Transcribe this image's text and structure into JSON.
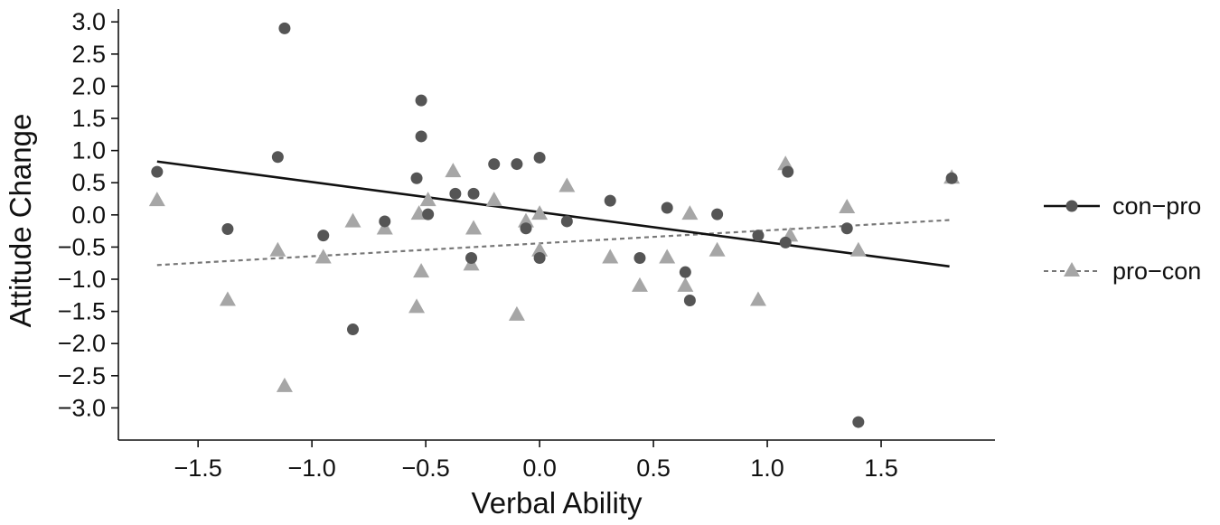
{
  "chart_data": {
    "type": "scatter",
    "xlabel": "Verbal Ability",
    "ylabel": "Attitude Change",
    "xlim": [
      -1.85,
      2.0
    ],
    "ylim": [
      -3.5,
      3.2
    ],
    "xticks": [
      -1.5,
      -1.0,
      -0.5,
      0.0,
      0.5,
      1.0,
      1.5
    ],
    "xtick_labels": [
      "−1.5",
      "−1.0",
      "−0.5",
      "0.0",
      "0.5",
      "1.0",
      "1.5"
    ],
    "yticks": [
      3.0,
      2.5,
      2.0,
      1.5,
      1.0,
      0.5,
      0.0,
      -0.5,
      -1.0,
      -1.5,
      -2.0,
      -2.5,
      -3.0
    ],
    "ytick_labels": [
      "3.0",
      "2.5",
      "2.0",
      "1.5",
      "1.0",
      "0.5",
      "0.0",
      "−0.5",
      "−1.0",
      "−1.5",
      "−2.0",
      "−2.5",
      "−3.0"
    ],
    "grid": false,
    "legend_position": "right",
    "series": [
      {
        "name": "con−pro",
        "marker": "circle",
        "line_style": "solid",
        "color": "#555555",
        "line_color": "#111111",
        "trend": [
          [
            -1.68,
            0.83
          ],
          [
            1.8,
            -0.8
          ]
        ],
        "points": [
          [
            -1.68,
            0.67
          ],
          [
            -1.37,
            -0.22
          ],
          [
            -1.15,
            0.9
          ],
          [
            -1.12,
            2.9
          ],
          [
            -0.95,
            -0.32
          ],
          [
            -0.82,
            -1.78
          ],
          [
            -0.68,
            -0.1
          ],
          [
            -0.54,
            0.57
          ],
          [
            -0.52,
            1.22
          ],
          [
            -0.52,
            1.78
          ],
          [
            -0.49,
            0.01
          ],
          [
            -0.37,
            0.33
          ],
          [
            -0.3,
            -0.67
          ],
          [
            -0.29,
            0.33
          ],
          [
            -0.2,
            0.79
          ],
          [
            -0.1,
            0.79
          ],
          [
            -0.06,
            -0.21
          ],
          [
            0.0,
            0.89
          ],
          [
            0.0,
            -0.67
          ],
          [
            0.12,
            -0.1
          ],
          [
            0.31,
            0.22
          ],
          [
            0.44,
            -0.67
          ],
          [
            0.56,
            0.11
          ],
          [
            0.64,
            -0.89
          ],
          [
            0.66,
            -1.33
          ],
          [
            0.78,
            0.01
          ],
          [
            0.96,
            -0.32
          ],
          [
            1.08,
            -0.43
          ],
          [
            1.09,
            0.67
          ],
          [
            1.35,
            -0.21
          ],
          [
            1.4,
            -3.22
          ],
          [
            1.81,
            0.57
          ]
        ]
      },
      {
        "name": "pro−con",
        "marker": "triangle",
        "line_style": "dashed",
        "color": "#a6a6a6",
        "line_color": "#777777",
        "trend": [
          [
            -1.68,
            -0.78
          ],
          [
            1.8,
            -0.08
          ]
        ],
        "points": [
          [
            -1.68,
            0.22
          ],
          [
            -1.37,
            -1.33
          ],
          [
            -1.15,
            -0.56
          ],
          [
            -1.12,
            -2.67
          ],
          [
            -0.95,
            -0.67
          ],
          [
            -0.82,
            -0.11
          ],
          [
            -0.68,
            -0.22
          ],
          [
            -0.54,
            -1.44
          ],
          [
            -0.53,
            0.01
          ],
          [
            -0.52,
            -0.89
          ],
          [
            -0.49,
            0.22
          ],
          [
            -0.38,
            0.67
          ],
          [
            -0.3,
            -0.78
          ],
          [
            -0.29,
            -0.22
          ],
          [
            -0.2,
            0.22
          ],
          [
            -0.1,
            -1.56
          ],
          [
            -0.06,
            -0.11
          ],
          [
            0.0,
            0.01
          ],
          [
            0.0,
            -0.56
          ],
          [
            0.12,
            0.44
          ],
          [
            0.31,
            -0.67
          ],
          [
            0.44,
            -1.11
          ],
          [
            0.56,
            -0.67
          ],
          [
            0.64,
            -1.11
          ],
          [
            0.66,
            0.01
          ],
          [
            0.78,
            -0.56
          ],
          [
            0.96,
            -1.33
          ],
          [
            1.08,
            0.78
          ],
          [
            1.1,
            -0.33
          ],
          [
            1.35,
            0.11
          ],
          [
            1.4,
            -0.56
          ],
          [
            1.81,
            0.57
          ]
        ]
      }
    ]
  }
}
